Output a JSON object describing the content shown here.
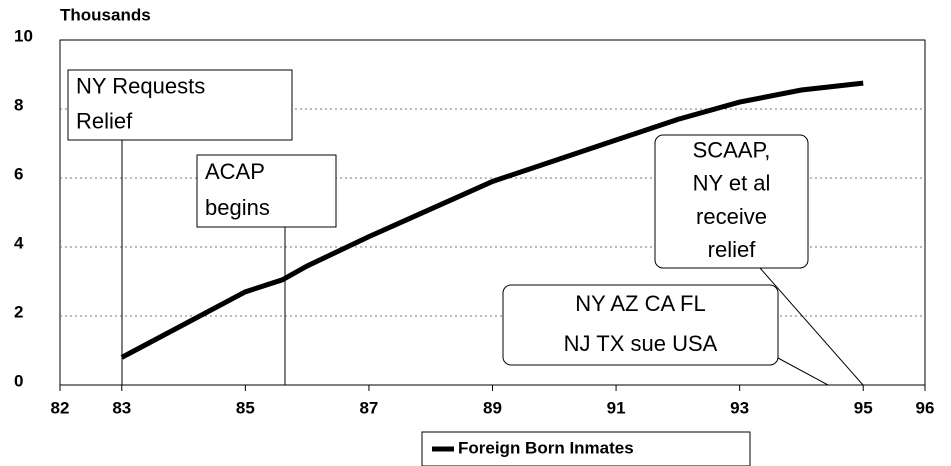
{
  "chart_data": {
    "type": "line",
    "y_axis_label": "Thousands",
    "x": [
      83,
      84,
      85,
      85.6,
      86,
      87,
      88,
      89,
      90,
      91,
      92,
      93,
      94,
      95
    ],
    "series": [
      {
        "name": "Foreign Born Inmates",
        "color": "#000000",
        "values": [
          0.8,
          1.75,
          2.7,
          3.05,
          3.45,
          4.3,
          5.1,
          5.9,
          6.5,
          7.1,
          7.7,
          8.2,
          8.55,
          8.75
        ]
      }
    ],
    "xlim": [
      82,
      96
    ],
    "xticks": [
      82,
      83,
      85,
      87,
      89,
      91,
      93,
      95,
      96
    ],
    "ylim": [
      0,
      10
    ],
    "yticks": [
      0,
      2,
      4,
      6,
      8,
      10
    ],
    "grid": true,
    "legend": "bottom",
    "annotations": [
      {
        "lines": [
          "NY Requests",
          "Relief"
        ]
      },
      {
        "lines": [
          "ACAP",
          "begins"
        ]
      },
      {
        "lines": [
          "SCAAP,",
          "NY et al",
          "receive",
          "relief"
        ]
      },
      {
        "lines": [
          "NY AZ CA FL",
          "NJ TX sue USA"
        ]
      }
    ]
  }
}
